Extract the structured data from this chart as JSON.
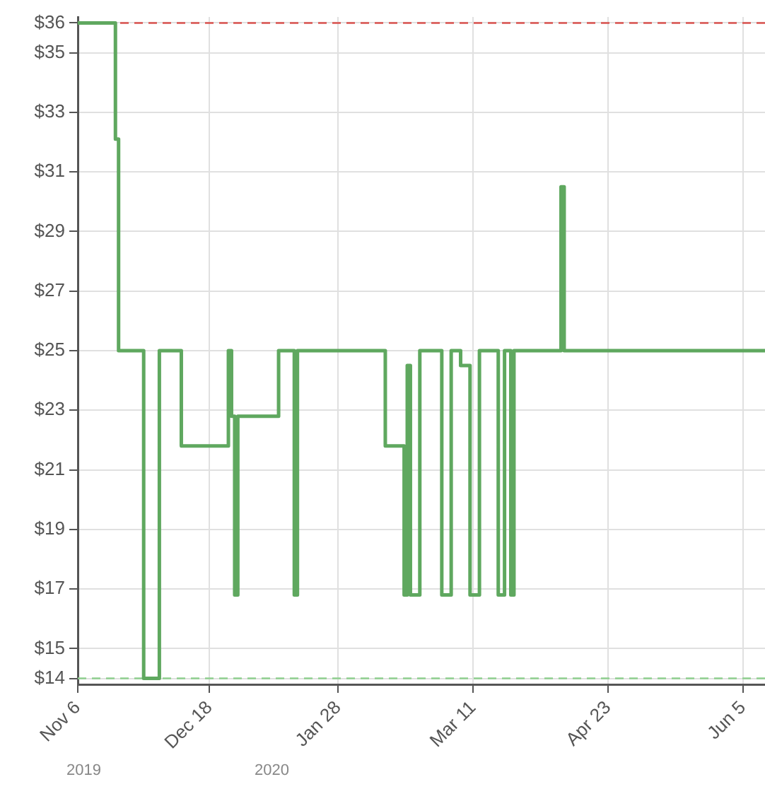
{
  "chart_data": {
    "type": "step",
    "x": [
      "2019-11-06",
      "2019-11-18",
      "2019-11-19",
      "2019-11-27",
      "2019-12-02",
      "2019-12-09",
      "2019-12-24",
      "2019-12-25",
      "2019-12-26",
      "2019-12-27",
      "2020-01-09",
      "2020-01-14",
      "2020-01-15",
      "2020-02-12",
      "2020-02-18",
      "2020-02-19",
      "2020-02-20",
      "2020-02-23",
      "2020-03-01",
      "2020-03-04",
      "2020-03-07",
      "2020-03-10",
      "2020-03-13",
      "2020-03-19",
      "2020-03-21",
      "2020-03-23",
      "2020-03-24",
      "2020-04-08",
      "2020-04-09",
      "2020-06-12"
    ],
    "series": [
      {
        "color": "#5fa85f",
        "values": [
          36,
          32.1,
          25,
          14,
          25,
          21.8,
          25,
          22.8,
          16.8,
          22.8,
          25,
          16.8,
          25,
          21.8,
          16.8,
          24.5,
          16.8,
          25,
          16.8,
          25,
          24.5,
          16.8,
          25,
          16.8,
          25,
          16.8,
          25,
          30.5,
          25,
          25
        ]
      }
    ],
    "xlim": [
      "2019-11-06",
      "2020-06-12"
    ],
    "xticks": [
      {
        "value": "2019-11-06",
        "label": "Nov 6"
      },
      {
        "value": "2019-12-18",
        "label": "Dec 18"
      },
      {
        "value": "2020-01-28",
        "label": "Jan 28"
      },
      {
        "value": "2020-03-11",
        "label": "Mar 11"
      },
      {
        "value": "2020-04-23",
        "label": "Apr 23"
      },
      {
        "value": "2020-06-05",
        "label": "Jun 5"
      }
    ],
    "ylim": [
      13.8,
      36.2
    ],
    "yticks": [
      {
        "value": 14,
        "label": "$14"
      },
      {
        "value": 15,
        "label": "$15"
      },
      {
        "value": 17,
        "label": "$17"
      },
      {
        "value": 19,
        "label": "$19"
      },
      {
        "value": 21,
        "label": "$21"
      },
      {
        "value": 23,
        "label": "$23"
      },
      {
        "value": 25,
        "label": "$25"
      },
      {
        "value": 27,
        "label": "$27"
      },
      {
        "value": 29,
        "label": "$29"
      },
      {
        "value": 31,
        "label": "$31"
      },
      {
        "value": 33,
        "label": "$33"
      },
      {
        "value": 35,
        "label": "$35"
      },
      {
        "value": 36,
        "label": "$36"
      }
    ],
    "ref_lines": [
      {
        "axis": "y",
        "value": 36,
        "color": "#d9534f",
        "line_style": "dashed"
      },
      {
        "axis": "y",
        "value": 14,
        "color": "#8fcf8f",
        "line_style": "dashed"
      }
    ],
    "annotations": [
      "2019",
      "2020"
    ],
    "grid": true,
    "legend": false,
    "marker": "none",
    "line_style": "solid"
  }
}
